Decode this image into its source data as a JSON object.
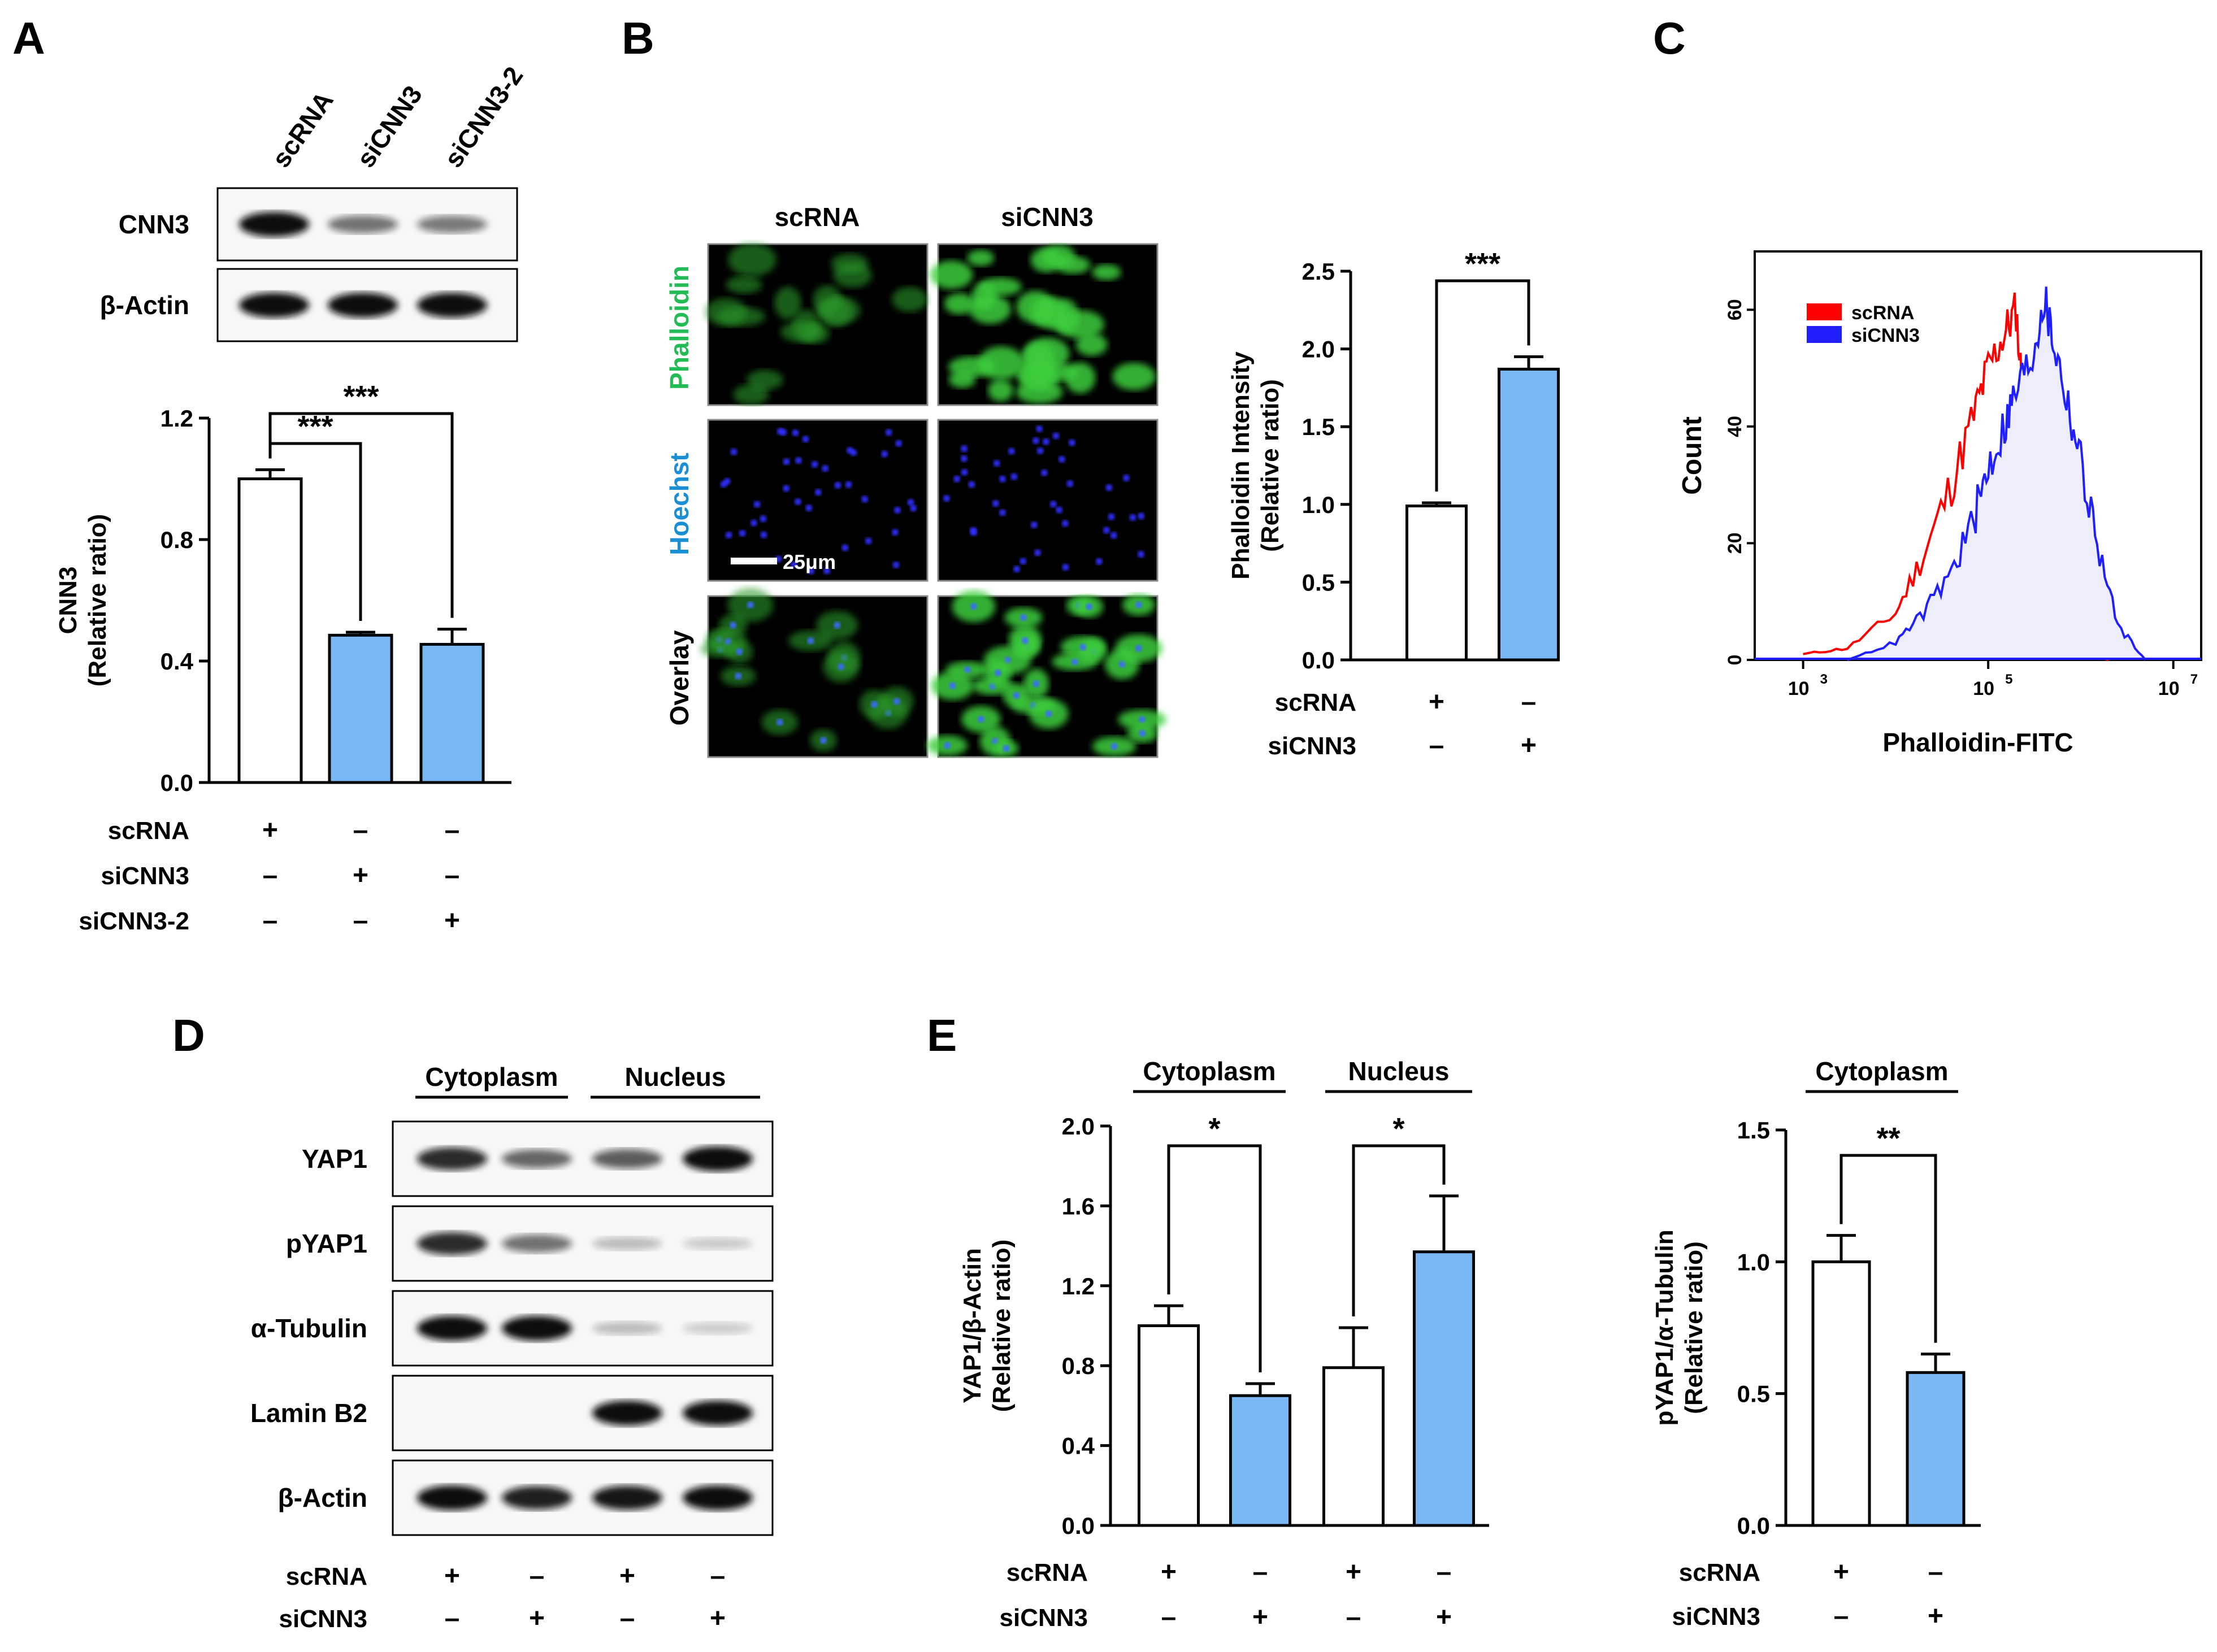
{
  "colors": {
    "bar_control": "#ffffff",
    "bar_treated": "#7ab8f5",
    "scRNA_hist": "#ff0000",
    "siCNN3_hist": "#2020ff",
    "siCNN3_fill": "#eeeefa",
    "phalloidin_label": "#22bb55",
    "hoechst_label": "#1a8fd6"
  },
  "panels": {
    "A": "A",
    "B": "B",
    "C": "C",
    "D": "D",
    "E": "E"
  },
  "panelA": {
    "lane_labels": [
      "scRNA",
      "siCNN3",
      "siCNN3-2"
    ],
    "blots": [
      {
        "label": "CNN3",
        "bands": [
          1.0,
          0.48,
          0.45
        ]
      },
      {
        "label": "β-Actin",
        "bands": [
          1.0,
          1.0,
          1.0
        ]
      }
    ],
    "treatments": [
      {
        "label": "scRNA",
        "signs": [
          "+",
          "–",
          "–"
        ]
      },
      {
        "label": "siCNN3",
        "signs": [
          "–",
          "+",
          "–"
        ]
      },
      {
        "label": "siCNN3-2",
        "signs": [
          "–",
          "–",
          "+"
        ]
      }
    ]
  },
  "panelB": {
    "columns": [
      "scRNA",
      "siCNN3"
    ],
    "rows": [
      "Phalloidin",
      "Hoechst",
      "Overlay"
    ],
    "scale_bar": "25μm",
    "treatments": [
      {
        "label": "scRNA",
        "signs": [
          "+",
          "–"
        ]
      },
      {
        "label": "siCNN3",
        "signs": [
          "–",
          "+"
        ]
      }
    ]
  },
  "panelD": {
    "groups": [
      "Cytoplasm",
      "Nucleus"
    ],
    "blots": [
      {
        "label": "YAP1",
        "bands": [
          0.85,
          0.55,
          0.6,
          1.0
        ]
      },
      {
        "label": "pYAP1",
        "bands": [
          0.85,
          0.5,
          0.12,
          0.05
        ]
      },
      {
        "label": "α-Tubulin",
        "bands": [
          1.0,
          1.0,
          0.12,
          0.04
        ]
      },
      {
        "label": "Lamin B2",
        "bands": [
          0.0,
          0.0,
          1.0,
          1.0
        ]
      },
      {
        "label": "β-Actin",
        "bands": [
          1.0,
          0.9,
          0.95,
          1.0
        ]
      }
    ],
    "treatments": [
      {
        "label": "scRNA",
        "signs": [
          "+",
          "–",
          "+",
          "–"
        ]
      },
      {
        "label": "siCNN3",
        "signs": [
          "–",
          "+",
          "–",
          "+"
        ]
      }
    ]
  },
  "panelE": {
    "groups": [
      "Cytoplasm",
      "Nucleus"
    ],
    "right_group": "Cytoplasm",
    "treatments_left": [
      {
        "label": "scRNA",
        "signs": [
          "+",
          "–",
          "+",
          "–"
        ]
      },
      {
        "label": "siCNN3",
        "signs": [
          "–",
          "+",
          "–",
          "+"
        ]
      }
    ],
    "treatments_right": [
      {
        "label": "scRNA",
        "signs": [
          "+",
          "–"
        ]
      },
      {
        "label": "siCNN3",
        "signs": [
          "–",
          "+"
        ]
      }
    ]
  },
  "chart_data": [
    {
      "id": "A_bar",
      "type": "bar",
      "categories": [
        "scRNA",
        "siCNN3",
        "siCNN3-2"
      ],
      "values": [
        1.0,
        0.485,
        0.455
      ],
      "errors": [
        0.03,
        0.01,
        0.05
      ],
      "ylabel": "CNN3",
      "ylabel2": "(Relative ratio)",
      "ylim": [
        0,
        1.2
      ],
      "yticks": [
        "0.0",
        "0.4",
        "0.8",
        "1.2"
      ],
      "significance": [
        {
          "from": 0,
          "to": 1,
          "label": "***"
        },
        {
          "from": 0,
          "to": 2,
          "label": "***"
        }
      ]
    },
    {
      "id": "B_bar",
      "type": "bar",
      "categories": [
        "scRNA",
        "siCNN3"
      ],
      "values": [
        0.99,
        1.87
      ],
      "errors": [
        0.02,
        0.08
      ],
      "ylabel": "Phalloidin Intensity",
      "ylabel2": "(Relative ratio)",
      "ylim": [
        0,
        2.5
      ],
      "yticks": [
        "0.0",
        "0.5",
        "1.0",
        "1.5",
        "2.0",
        "2.5"
      ],
      "significance": [
        {
          "from": 0,
          "to": 1,
          "label": "***"
        }
      ]
    },
    {
      "id": "C_hist",
      "type": "line",
      "xlabel": "Phalloidin-FITC",
      "ylabel": "Count",
      "xscale": "log",
      "xlim": [
        300,
        20000000
      ],
      "ylim": [
        0,
        70
      ],
      "xticks": [
        {
          "base": "10",
          "exp": "3"
        },
        {
          "base": "10",
          "exp": "5"
        },
        {
          "base": "10",
          "exp": "7"
        }
      ],
      "yticks": [
        "0",
        "20",
        "40",
        "60"
      ],
      "legend": "top-left",
      "series": [
        {
          "name": "scRNA",
          "x": [
            1000,
            3000,
            10000,
            20000,
            40000,
            70000,
            100000,
            150000,
            200000,
            250000,
            350000,
            500000,
            800000,
            1200000,
            2000000
          ],
          "y": [
            1,
            2,
            8,
            18,
            30,
            42,
            50,
            56,
            60,
            40,
            24,
            12,
            5,
            1,
            0
          ]
        },
        {
          "name": "siCNN3",
          "x": [
            3000,
            10000,
            20000,
            40000,
            70000,
            100000,
            150000,
            200000,
            300000,
            400000,
            500000,
            700000,
            1000000,
            1500000,
            2500000,
            5000000
          ],
          "y": [
            0,
            3,
            8,
            15,
            24,
            33,
            40,
            46,
            52,
            62,
            55,
            45,
            34,
            20,
            6,
            0
          ]
        }
      ]
    },
    {
      "id": "E_left_bar",
      "type": "bar",
      "categories": [
        "Cytoplasm scRNA",
        "Cytoplasm siCNN3",
        "Nucleus scRNA",
        "Nucleus siCNN3"
      ],
      "values": [
        1.0,
        0.65,
        0.79,
        1.37
      ],
      "errors": [
        0.1,
        0.06,
        0.2,
        0.28
      ],
      "ylabel": "YAP1/β-Actin",
      "ylabel2": "(Relative ratio)",
      "ylim": [
        0,
        2.0
      ],
      "yticks": [
        "0.0",
        "0.4",
        "0.8",
        "1.2",
        "1.6",
        "2.0"
      ],
      "significance": [
        {
          "from": 0,
          "to": 1,
          "label": "*"
        },
        {
          "from": 2,
          "to": 3,
          "label": "*"
        }
      ]
    },
    {
      "id": "E_right_bar",
      "type": "bar",
      "categories": [
        "scRNA",
        "siCNN3"
      ],
      "values": [
        1.0,
        0.58
      ],
      "errors": [
        0.1,
        0.07
      ],
      "ylabel": "pYAP1/α-Tubulin",
      "ylabel2": "(Relative ratio)",
      "ylim": [
        0,
        1.5
      ],
      "yticks": [
        "0.0",
        "0.5",
        "1.0",
        "1.5"
      ],
      "significance": [
        {
          "from": 0,
          "to": 1,
          "label": "**"
        }
      ]
    }
  ]
}
